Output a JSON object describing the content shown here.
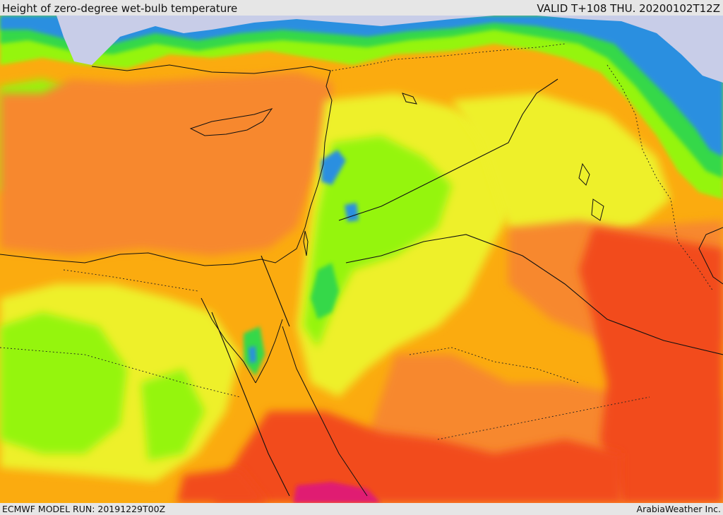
{
  "header": {
    "title": "Height of zero-degree wet-bulb temperature",
    "valid": "VALID T+108 THU. 20200102T12Z"
  },
  "footer": {
    "model_run": "ECMWF MODEL RUN: 20191229T00Z",
    "credit": "ArabiaWeather Inc."
  },
  "colors": {
    "very_high": "#e01e72",
    "high": "#f24c1d",
    "med_high": "#f7882e",
    "medium": "#fbab0f",
    "med_low": "#eef02a",
    "low": "#95f510",
    "lower": "#36d84a",
    "lowest": "#2a8fe0",
    "snow": "#c8cde8",
    "coast": "#111111"
  }
}
